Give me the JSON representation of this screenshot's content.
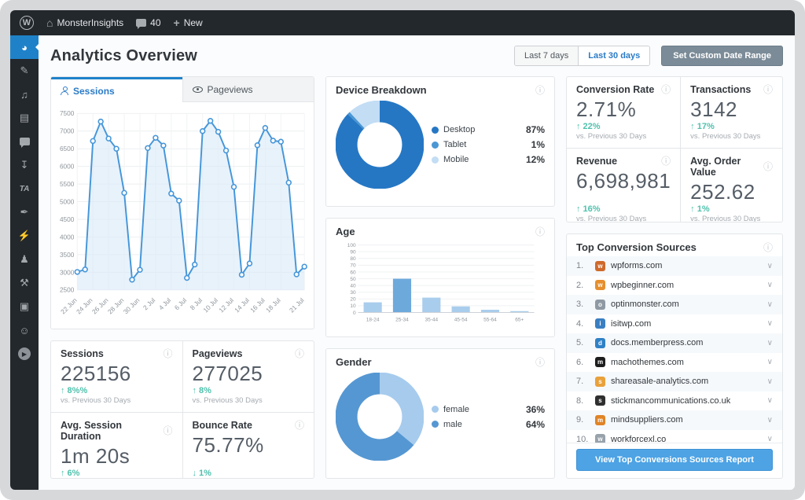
{
  "admin_bar": {
    "wp_logo_letter": "W",
    "site_label": "MonsterInsights",
    "comments_count": "40",
    "new_label": "New"
  },
  "sidebar": {
    "items": [
      {
        "name": "dashboard-icon",
        "active": true
      },
      {
        "name": "pushpin-posts-icon",
        "active": false
      },
      {
        "name": "media-icon",
        "active": false
      },
      {
        "name": "pages-icon",
        "active": false
      },
      {
        "name": "comments-icon",
        "active": false
      },
      {
        "name": "downloads-icon",
        "active": false
      },
      {
        "name": "ta-plugin-icon",
        "active": false
      },
      {
        "name": "appearance-brush-icon",
        "active": false
      },
      {
        "name": "plugins-icon",
        "active": false
      },
      {
        "name": "users-icon",
        "active": false
      },
      {
        "name": "tools-wrench-icon",
        "active": false
      },
      {
        "name": "settings-icon",
        "active": false
      },
      {
        "name": "monsterinsights-icon",
        "active": false
      },
      {
        "name": "collapse-menu-icon",
        "active": false
      }
    ]
  },
  "header": {
    "title": "Analytics Overview",
    "range_7_label": "Last 7 days",
    "range_30_label": "Last 30 days",
    "active_range": "Last 30 days",
    "custom_range_label": "Set Custom Date Range"
  },
  "tabs": {
    "sessions_label": "Sessions",
    "pageviews_label": "Pageviews"
  },
  "chart_data": [
    {
      "id": "sessions-over-time",
      "type": "area",
      "title": "Sessions",
      "ylim": [
        2500,
        7500
      ],
      "ytick": 500,
      "grid": true,
      "line_color": "#4596d9",
      "fill_color": "#d9e9f8",
      "values": [
        3010,
        3080,
        6720,
        7270,
        6790,
        6500,
        5250,
        2790,
        3070,
        6520,
        6810,
        6590,
        5230,
        5030,
        2840,
        3220,
        7000,
        7290,
        6980,
        6450,
        5420,
        2930,
        3250,
        6600,
        7090,
        6730,
        6700,
        5540,
        2940,
        3160
      ],
      "x_tick_labels": [
        {
          "i": 0,
          "label": "22 Jun"
        },
        {
          "i": 2,
          "label": "24 Jun"
        },
        {
          "i": 4,
          "label": "26 Jun"
        },
        {
          "i": 6,
          "label": "28 Jun"
        },
        {
          "i": 8,
          "label": "30 Jun"
        },
        {
          "i": 10,
          "label": "2 Jul"
        },
        {
          "i": 12,
          "label": "4 Jul"
        },
        {
          "i": 14,
          "label": "6 Jul"
        },
        {
          "i": 16,
          "label": "8 Jul"
        },
        {
          "i": 18,
          "label": "10 Jul"
        },
        {
          "i": 20,
          "label": "12 Jul"
        },
        {
          "i": 22,
          "label": "14 Jul"
        },
        {
          "i": 24,
          "label": "16 Jul"
        },
        {
          "i": 26,
          "label": "18 Jul"
        },
        {
          "i": 29,
          "label": "21 Jul"
        }
      ]
    },
    {
      "id": "device-breakdown",
      "type": "donut",
      "title": "Device Breakdown",
      "slices": [
        {
          "label": "Desktop",
          "value": 87,
          "display": "87%",
          "color": "#2577c4"
        },
        {
          "label": "Tablet",
          "value": 1,
          "display": "1%",
          "color": "#4a97d4"
        },
        {
          "label": "Mobile",
          "value": 12,
          "display": "12%",
          "color": "#c2ddf4"
        }
      ],
      "legend_position": "right"
    },
    {
      "id": "age",
      "type": "bar",
      "title": "Age",
      "categories": [
        "18-24",
        "25-34",
        "35-44",
        "45-54",
        "55-64",
        "65+"
      ],
      "values": [
        15,
        50,
        22,
        9,
        4,
        2
      ],
      "ylim": [
        0,
        100
      ],
      "ytick": 10,
      "grid": true,
      "bar_color": "#a9cdec",
      "highlight_category": "25-34",
      "highlight_color": "#6ea9dc"
    },
    {
      "id": "gender",
      "type": "donut",
      "title": "Gender",
      "slices": [
        {
          "label": "female",
          "value": 36,
          "display": "36%",
          "color": "#a6cbed"
        },
        {
          "label": "male",
          "value": 64,
          "display": "64%",
          "color": "#5597d2"
        }
      ],
      "legend_position": "right"
    }
  ],
  "stat_cards": {
    "left": [
      {
        "label": "Sessions",
        "value": "225156",
        "change": "8%%",
        "dir": "up",
        "sub": "vs. Previous 30 Days"
      },
      {
        "label": "Pageviews",
        "value": "277025",
        "change": "8%",
        "dir": "up",
        "sub": "vs. Previous 30 Days"
      },
      {
        "label": "Avg. Session Duration",
        "value": "1m 20s",
        "change": "6%",
        "dir": "up",
        "sub": "vs. Previous 30 Days"
      },
      {
        "label": "Bounce Rate",
        "value": "75.77%",
        "change": "1%",
        "dir": "down",
        "sub": "vs. Previous 30 Days"
      }
    ],
    "right": [
      {
        "label": "Conversion Rate",
        "value": "2.71%",
        "change": "22%",
        "dir": "up",
        "sub": "vs. Previous 30 Days"
      },
      {
        "label": "Transactions",
        "value": "3142",
        "change": "17%",
        "dir": "up",
        "sub": "vs. Previous 30 Days"
      },
      {
        "label": "Revenue",
        "value": "6,698,981",
        "change": "16%",
        "dir": "up",
        "sub": "vs. Previous 30 Days"
      },
      {
        "label": "Avg. Order Value",
        "value": "252.62",
        "change": "1%",
        "dir": "up",
        "sub": "vs. Previous 30 Days"
      }
    ]
  },
  "top_conversion_sources": {
    "title": "Top Conversion Sources",
    "button_label": "View Top Conversions Sources Report",
    "items": [
      {
        "rank": "1.",
        "domain": "wpforms.com",
        "icon": "wpforms-favicon",
        "color": "#cf6a2c"
      },
      {
        "rank": "2.",
        "domain": "wpbeginner.com",
        "icon": "wpbeginner-favicon",
        "color": "#e68f2e"
      },
      {
        "rank": "3.",
        "domain": "optinmonster.com",
        "icon": "optinmonster-favicon",
        "color": "#8e99a3"
      },
      {
        "rank": "4.",
        "domain": "isitwp.com",
        "icon": "isitwp-favicon",
        "color": "#3a7fc2"
      },
      {
        "rank": "5.",
        "domain": "docs.memberpress.com",
        "icon": "memberpress-favicon",
        "color": "#2f81c6"
      },
      {
        "rank": "6.",
        "domain": "machothemes.com",
        "icon": "machothemes-favicon",
        "color": "#1d1d1d"
      },
      {
        "rank": "7.",
        "domain": "shareasale-analytics.com",
        "icon": "shareasale-favicon",
        "color": "#e9a13b"
      },
      {
        "rank": "8.",
        "domain": "stickmancommunications.co.uk",
        "icon": "stickman-favicon",
        "color": "#2f2f2f"
      },
      {
        "rank": "9.",
        "domain": "mindsuppliers.com",
        "icon": "mindsuppliers-favicon",
        "color": "#e08427"
      },
      {
        "rank": "10.",
        "domain": "workforcexl.co",
        "icon": "workforcexl-favicon",
        "color": "#98a2ab"
      }
    ]
  },
  "colors": {
    "accent_blue": "#1f82c9",
    "link_blue": "#2b7bc7",
    "teal_change": "#4fc1ad",
    "admin_dark": "#23282d",
    "card_border": "#e3e6e9"
  }
}
